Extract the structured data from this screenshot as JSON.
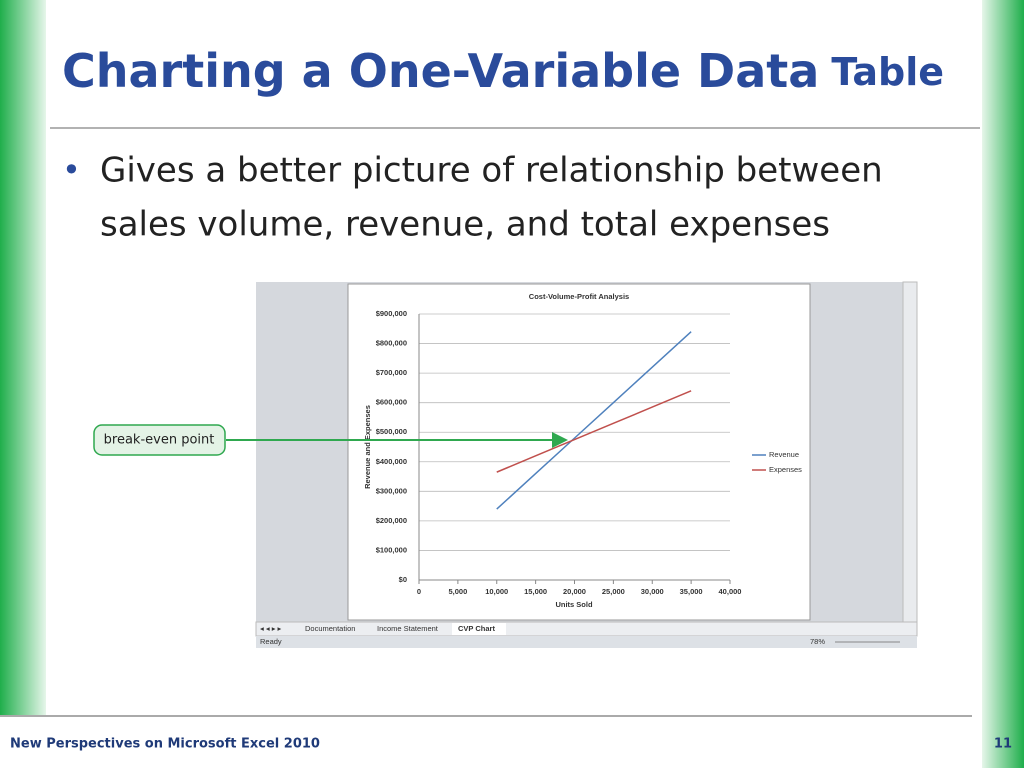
{
  "header": {
    "title_main": "Charting a One-Variable Data",
    "title_end": "Table"
  },
  "bullets": [
    [
      "Gives a better picture of relationship between",
      "sales volume, revenue, and total expenses"
    ]
  ],
  "callout": "break-even point",
  "sheet_tabs": [
    "Documentation",
    "Income Statement",
    "CVP Chart"
  ],
  "status": {
    "left": "Ready",
    "zoom": "78%"
  },
  "footer": {
    "text": "New Perspectives on Microsoft Excel 2010",
    "page": "11"
  },
  "chart_data": {
    "type": "line",
    "title": "Cost-Volume-Profit Analysis",
    "x_label": "Units Sold",
    "y_label": "Revenue and Expenses",
    "x": [
      10000,
      15000,
      20000,
      25000,
      30000,
      35000
    ],
    "series": [
      {
        "name": "Revenue",
        "color": "#4f81bd",
        "values": [
          240000,
          360000,
          480000,
          600000,
          720000,
          840000
        ]
      },
      {
        "name": "Expenses",
        "color": "#c0504d",
        "values": [
          365000,
          420000,
          475000,
          530000,
          585000,
          640000
        ]
      }
    ],
    "xlim": [
      0,
      40000
    ],
    "xticks": [
      0,
      {
        "value": 5000,
        "label": "5,000"
      },
      {
        "value": 10000,
        "label": "10,000"
      },
      {
        "value": 15000,
        "label": "15,000"
      },
      {
        "value": 20000,
        "label": "20,000"
      },
      {
        "value": 25000,
        "label": "25,000"
      },
      {
        "value": 30000,
        "label": "30,000"
      },
      {
        "value": 35000,
        "label": "35,000"
      },
      {
        "value": 40000,
        "label": "40,000"
      }
    ],
    "ylim": [
      0,
      900000
    ],
    "yticks": [
      {
        "value": 0,
        "label": "$0"
      },
      {
        "value": 100000,
        "label": "$100,000"
      },
      {
        "value": 200000,
        "label": "$200,000"
      },
      {
        "value": 300000,
        "label": "$300,000"
      },
      {
        "value": 400000,
        "label": "$400,000"
      },
      {
        "value": 500000,
        "label": "$500,000"
      },
      {
        "value": 600000,
        "label": "$600,000"
      },
      {
        "value": 700000,
        "label": "$700,000"
      },
      {
        "value": 800000,
        "label": "$800,000"
      },
      {
        "value": 900000,
        "label": "$900,000"
      }
    ],
    "grid": true,
    "legend": "right"
  }
}
